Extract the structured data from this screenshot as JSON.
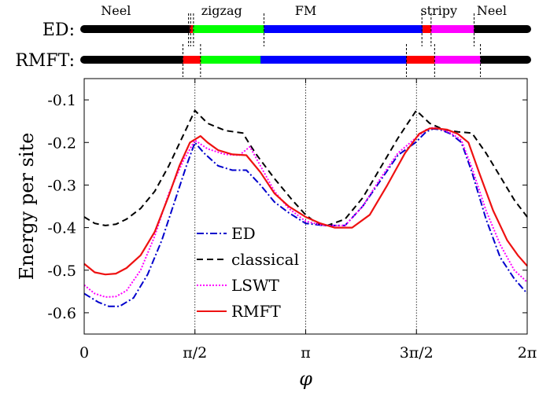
{
  "phase_bars": {
    "phase_labels": [
      {
        "text": "Neel",
        "phi": 0.45
      },
      {
        "text": "zigzag",
        "phi": 1.95
      },
      {
        "text": "FM",
        "phi": 3.14159
      },
      {
        "text": "stripy",
        "phi": 5.03
      },
      {
        "text": "Neel",
        "phi": 5.78
      }
    ],
    "rows": [
      {
        "label": "ED:",
        "segments": [
          {
            "from": 0.0,
            "to": 1.5,
            "color": "#000000"
          },
          {
            "from": 1.5,
            "to": 1.54,
            "color": "#ff0000"
          },
          {
            "from": 1.54,
            "to": 2.55,
            "color": "#00ff00"
          },
          {
            "from": 2.55,
            "to": 4.8,
            "color": "#0000ff"
          },
          {
            "from": 4.8,
            "to": 4.92,
            "color": "#ff0000"
          },
          {
            "from": 4.92,
            "to": 5.53,
            "color": "#ff00ff"
          },
          {
            "from": 5.53,
            "to": 6.2832,
            "color": "#000000"
          }
        ],
        "dashes": [
          1.48,
          1.51,
          1.55,
          2.55,
          4.79,
          4.92,
          5.53
        ]
      },
      {
        "label": "RMFT:",
        "segments": [
          {
            "from": 0.0,
            "to": 1.4,
            "color": "#000000"
          },
          {
            "from": 1.4,
            "to": 1.65,
            "color": "#ff0000"
          },
          {
            "from": 1.65,
            "to": 2.5,
            "color": "#00ff00"
          },
          {
            "from": 2.5,
            "to": 4.57,
            "color": "#0000ff"
          },
          {
            "from": 4.57,
            "to": 4.97,
            "color": "#ff0000"
          },
          {
            "from": 4.97,
            "to": 5.62,
            "color": "#ff00ff"
          },
          {
            "from": 5.62,
            "to": 6.2832,
            "color": "#000000"
          }
        ],
        "dashes": [
          1.4,
          1.65,
          4.57,
          4.97,
          5.62
        ]
      }
    ]
  },
  "chart_data": {
    "type": "line",
    "title": "",
    "xlabel": "φ",
    "ylabel": "Energy per site",
    "xlim": [
      0,
      6.2832
    ],
    "ylim": [
      -0.65,
      -0.05
    ],
    "xticks": [
      {
        "value": 0,
        "label": "0"
      },
      {
        "value": 1.5708,
        "label": "π/2"
      },
      {
        "value": 3.1416,
        "label": "π"
      },
      {
        "value": 4.7124,
        "label": "3π/2"
      },
      {
        "value": 6.2832,
        "label": "2π"
      }
    ],
    "yticks": [
      {
        "value": -0.1,
        "label": "-0.1"
      },
      {
        "value": -0.2,
        "label": "-0.2"
      },
      {
        "value": -0.3,
        "label": "-0.3"
      },
      {
        "value": -0.4,
        "label": "-0.4"
      },
      {
        "value": -0.5,
        "label": "-0.5"
      },
      {
        "value": -0.6,
        "label": "-0.6"
      }
    ],
    "vlines": [
      1.5708,
      3.1416,
      4.7124
    ],
    "legend_position": "center-left",
    "series": [
      {
        "name": "ED",
        "color": "#0000cc",
        "dash": "9,3,2,3",
        "x": [
          0,
          0.2,
          0.35,
          0.5,
          0.7,
          0.9,
          1.1,
          1.3,
          1.45,
          1.57,
          1.7,
          1.9,
          2.1,
          2.3,
          2.5,
          2.7,
          2.9,
          3.14,
          3.4,
          3.7,
          3.95,
          4.2,
          4.45,
          4.7,
          4.85,
          4.95,
          5.05,
          5.2,
          5.35,
          5.5,
          5.7,
          5.9,
          6.1,
          6.2832
        ],
        "y": [
          -0.555,
          -0.575,
          -0.585,
          -0.585,
          -0.565,
          -0.51,
          -0.43,
          -0.33,
          -0.255,
          -0.2,
          -0.225,
          -0.255,
          -0.265,
          -0.265,
          -0.3,
          -0.34,
          -0.365,
          -0.39,
          -0.395,
          -0.395,
          -0.35,
          -0.29,
          -0.23,
          -0.2,
          -0.175,
          -0.168,
          -0.17,
          -0.18,
          -0.2,
          -0.27,
          -0.38,
          -0.47,
          -0.52,
          -0.555
        ]
      },
      {
        "name": "classical",
        "color": "#000000",
        "dash": "8,5",
        "x": [
          0,
          0.15,
          0.3,
          0.45,
          0.6,
          0.8,
          1.0,
          1.2,
          1.4,
          1.57,
          1.75,
          2.0,
          2.25,
          2.35,
          2.45,
          2.7,
          2.95,
          3.14,
          3.3,
          3.45,
          3.7,
          3.95,
          4.2,
          4.45,
          4.71,
          4.9,
          5.1,
          5.3,
          5.5,
          5.7,
          5.9,
          6.1,
          6.2832
        ],
        "y": [
          -0.375,
          -0.39,
          -0.395,
          -0.392,
          -0.38,
          -0.355,
          -0.315,
          -0.255,
          -0.185,
          -0.125,
          -0.155,
          -0.172,
          -0.178,
          -0.205,
          -0.23,
          -0.285,
          -0.335,
          -0.37,
          -0.39,
          -0.395,
          -0.38,
          -0.33,
          -0.26,
          -0.19,
          -0.125,
          -0.155,
          -0.17,
          -0.175,
          -0.178,
          -0.225,
          -0.28,
          -0.335,
          -0.375
        ]
      },
      {
        "name": "LSWT",
        "color": "#ff00ff",
        "dash": "2,2",
        "x": [
          0,
          0.15,
          0.3,
          0.45,
          0.6,
          0.8,
          1.0,
          1.2,
          1.4,
          1.57,
          1.75,
          2.0,
          2.2,
          2.35,
          2.45,
          2.7,
          2.9,
          3.14,
          3.4,
          3.7,
          3.95,
          4.2,
          4.45,
          4.7,
          4.85,
          4.95,
          5.05,
          5.2,
          5.35,
          5.5,
          5.7,
          5.9,
          6.1,
          6.2832
        ],
        "y": [
          -0.535,
          -0.555,
          -0.563,
          -0.562,
          -0.548,
          -0.5,
          -0.42,
          -0.32,
          -0.245,
          -0.195,
          -0.215,
          -0.228,
          -0.23,
          -0.21,
          -0.24,
          -0.315,
          -0.355,
          -0.385,
          -0.395,
          -0.395,
          -0.35,
          -0.285,
          -0.225,
          -0.19,
          -0.17,
          -0.165,
          -0.168,
          -0.178,
          -0.195,
          -0.26,
          -0.36,
          -0.44,
          -0.5,
          -0.528
        ]
      },
      {
        "name": "RMFT",
        "color": "#ee1111",
        "dash": "",
        "x": [
          0,
          0.15,
          0.3,
          0.45,
          0.6,
          0.8,
          1.0,
          1.2,
          1.35,
          1.5,
          1.65,
          1.75,
          1.9,
          2.1,
          2.3,
          2.5,
          2.7,
          2.9,
          3.14,
          3.35,
          3.55,
          3.8,
          4.05,
          4.3,
          4.55,
          4.75,
          4.9,
          5.0,
          5.15,
          5.3,
          5.45,
          5.6,
          5.8,
          6.0,
          6.15,
          6.2832
        ],
        "y": [
          -0.485,
          -0.505,
          -0.51,
          -0.508,
          -0.495,
          -0.465,
          -0.41,
          -0.325,
          -0.255,
          -0.2,
          -0.185,
          -0.2,
          -0.218,
          -0.228,
          -0.23,
          -0.27,
          -0.32,
          -0.35,
          -0.375,
          -0.39,
          -0.4,
          -0.4,
          -0.37,
          -0.3,
          -0.225,
          -0.18,
          -0.167,
          -0.167,
          -0.17,
          -0.18,
          -0.2,
          -0.27,
          -0.36,
          -0.43,
          -0.465,
          -0.49
        ]
      }
    ]
  }
}
